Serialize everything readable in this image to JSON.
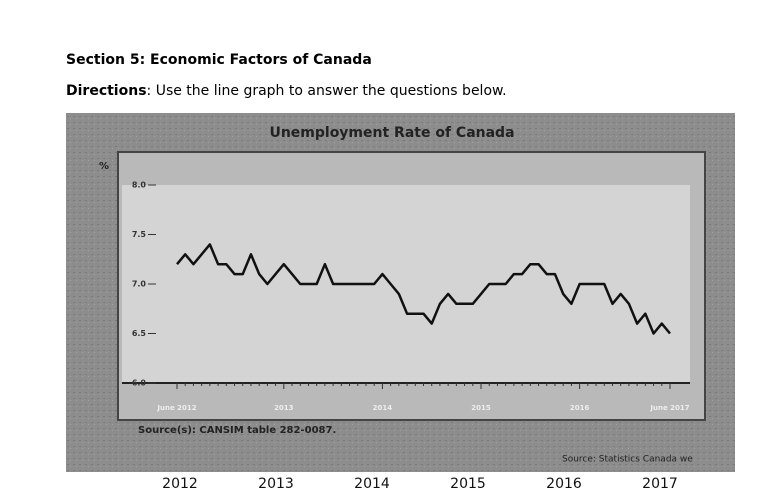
{
  "header": {
    "title": "Section 5: Economic Factors of Canada",
    "directions_label": "Directions",
    "directions_text": ": Use the line graph to answer the questions below."
  },
  "chart_data": {
    "type": "line",
    "title": "Unemployment Rate of Canada",
    "y_unit": "%",
    "categories": [
      "June 2012",
      null,
      null,
      null,
      null,
      null,
      null,
      null,
      null,
      null,
      null,
      null,
      null,
      "2013",
      null,
      null,
      null,
      null,
      null,
      null,
      null,
      null,
      null,
      null,
      null,
      "2014",
      null,
      null,
      null,
      null,
      null,
      null,
      null,
      null,
      null,
      null,
      null,
      "2015",
      null,
      null,
      null,
      null,
      null,
      null,
      null,
      null,
      null,
      null,
      null,
      "2016",
      null,
      null,
      null,
      null,
      null,
      null,
      null,
      null,
      null,
      null,
      "June 2017"
    ],
    "series": [
      {
        "name": "Unemployment rate",
        "color": "#111111",
        "values": [
          7.2,
          7.3,
          7.2,
          7.3,
          7.4,
          7.2,
          7.2,
          7.1,
          7.1,
          7.3,
          7.1,
          7.0,
          7.1,
          7.2,
          7.1,
          7.0,
          7.0,
          7.0,
          7.2,
          7.0,
          7.0,
          7.0,
          7.0,
          7.0,
          7.0,
          7.1,
          7.0,
          6.9,
          6.7,
          6.7,
          6.7,
          6.6,
          6.8,
          6.9,
          6.8,
          6.8,
          6.8,
          6.9,
          7.0,
          7.0,
          7.0,
          7.1,
          7.1,
          7.2,
          7.2,
          7.1,
          7.1,
          6.9,
          6.8,
          7.0,
          7.0,
          7.0,
          7.0,
          6.8,
          6.9,
          6.8,
          6.6,
          6.7,
          6.5,
          6.6,
          6.5
        ]
      }
    ],
    "ylim": [
      6,
      8
    ],
    "yticks": [
      {
        "value": 6,
        "label": "6.0"
      },
      {
        "value": 6.5,
        "label": "6.5"
      },
      {
        "value": 7,
        "label": "7.0"
      },
      {
        "value": 7.5,
        "label": "7.5"
      },
      {
        "value": 8,
        "label": "8.0"
      }
    ],
    "source_left": "Source(s): CANSIM table 282-0087.",
    "source_right": "Source: Statistics Canada we"
  },
  "footer_years": [
    "2012",
    "2013",
    "2014",
    "2015",
    "2016",
    "2017"
  ]
}
